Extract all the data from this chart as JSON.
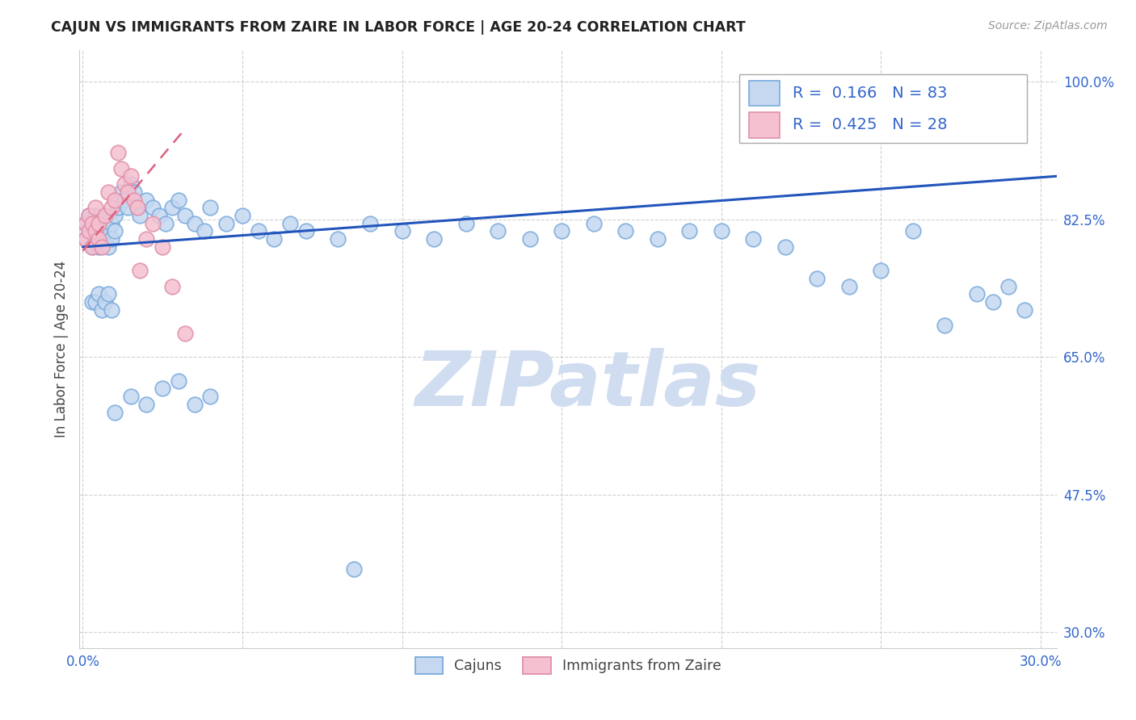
{
  "title": "CAJUN VS IMMIGRANTS FROM ZAIRE IN LABOR FORCE | AGE 20-24 CORRELATION CHART",
  "source": "Source: ZipAtlas.com",
  "ylabel": "In Labor Force | Age 20-24",
  "xlim": [
    -0.001,
    0.305
  ],
  "ylim": [
    0.28,
    1.04
  ],
  "xticks": [
    0.0,
    0.05,
    0.1,
    0.15,
    0.2,
    0.25,
    0.3
  ],
  "xticklabels": [
    "0.0%",
    "",
    "",
    "",
    "",
    "",
    "30.0%"
  ],
  "yticks": [
    0.3,
    0.475,
    0.65,
    0.825,
    1.0
  ],
  "yticklabels": [
    "30.0%",
    "47.5%",
    "65.0%",
    "82.5%",
    "100.0%"
  ],
  "legend_R_blue": "0.166",
  "legend_N_blue": "83",
  "legend_R_pink": "0.425",
  "legend_N_pink": "28",
  "blue_fill": "#c5d8f0",
  "blue_edge": "#7aabdd",
  "pink_fill": "#f5c0d0",
  "pink_edge": "#e090a8",
  "trend_blue_color": "#2255bb",
  "trend_pink_color": "#e06080",
  "watermark": "ZIPatlas",
  "watermark_color": "#d0ddf0",
  "text_blue": "#3366cc",
  "legend_box_color": "#dddddd",
  "cajun_x": [
    0.001,
    0.001,
    0.002,
    0.002,
    0.003,
    0.003,
    0.004,
    0.004,
    0.005,
    0.005,
    0.005,
    0.006,
    0.006,
    0.007,
    0.007,
    0.008,
    0.008,
    0.009,
    0.009,
    0.01,
    0.01,
    0.011,
    0.012,
    0.013,
    0.014,
    0.015,
    0.016,
    0.017,
    0.018,
    0.02,
    0.022,
    0.024,
    0.026,
    0.028,
    0.03,
    0.032,
    0.035,
    0.038,
    0.04,
    0.045,
    0.05,
    0.055,
    0.06,
    0.065,
    0.07,
    0.08,
    0.09,
    0.1,
    0.11,
    0.12,
    0.13,
    0.14,
    0.15,
    0.16,
    0.17,
    0.18,
    0.19,
    0.2,
    0.21,
    0.22,
    0.23,
    0.24,
    0.25,
    0.26,
    0.27,
    0.28,
    0.285,
    0.29,
    0.295,
    0.003,
    0.004,
    0.005,
    0.006,
    0.007,
    0.008,
    0.009,
    0.01,
    0.015,
    0.02,
    0.025,
    0.03,
    0.035,
    0.04
  ],
  "cajun_y": [
    0.8,
    0.82,
    0.81,
    0.83,
    0.79,
    0.82,
    0.81,
    0.83,
    0.8,
    0.82,
    0.79,
    0.81,
    0.8,
    0.82,
    0.83,
    0.79,
    0.81,
    0.8,
    0.82,
    0.83,
    0.81,
    0.84,
    0.86,
    0.85,
    0.84,
    0.87,
    0.86,
    0.84,
    0.83,
    0.85,
    0.84,
    0.83,
    0.82,
    0.84,
    0.85,
    0.83,
    0.82,
    0.81,
    0.84,
    0.82,
    0.83,
    0.81,
    0.8,
    0.82,
    0.81,
    0.8,
    0.82,
    0.81,
    0.8,
    0.82,
    0.81,
    0.8,
    0.81,
    0.82,
    0.81,
    0.8,
    0.81,
    0.81,
    0.8,
    0.79,
    0.75,
    0.74,
    0.76,
    0.81,
    0.69,
    0.73,
    0.72,
    0.74,
    0.71,
    0.72,
    0.72,
    0.73,
    0.71,
    0.72,
    0.73,
    0.71,
    0.58,
    0.6,
    0.59,
    0.61,
    0.62,
    0.59,
    0.6
  ],
  "cajun_y_outlier": [
    0.38
  ],
  "cajun_x_outlier": [
    0.085
  ],
  "zaire_x": [
    0.001,
    0.001,
    0.002,
    0.002,
    0.003,
    0.003,
    0.004,
    0.004,
    0.005,
    0.005,
    0.006,
    0.007,
    0.008,
    0.009,
    0.01,
    0.011,
    0.012,
    0.013,
    0.014,
    0.015,
    0.016,
    0.017,
    0.018,
    0.02,
    0.022,
    0.025,
    0.028,
    0.032
  ],
  "zaire_y": [
    0.8,
    0.82,
    0.81,
    0.83,
    0.79,
    0.82,
    0.81,
    0.84,
    0.8,
    0.82,
    0.79,
    0.83,
    0.86,
    0.84,
    0.85,
    0.91,
    0.89,
    0.87,
    0.86,
    0.88,
    0.85,
    0.84,
    0.76,
    0.8,
    0.82,
    0.79,
    0.74,
    0.68
  ],
  "blue_line_x": [
    0.0,
    0.305
  ],
  "blue_line_y": [
    0.79,
    0.88
  ],
  "pink_line_x": [
    0.0,
    0.032
  ],
  "pink_line_y": [
    0.785,
    0.94
  ]
}
